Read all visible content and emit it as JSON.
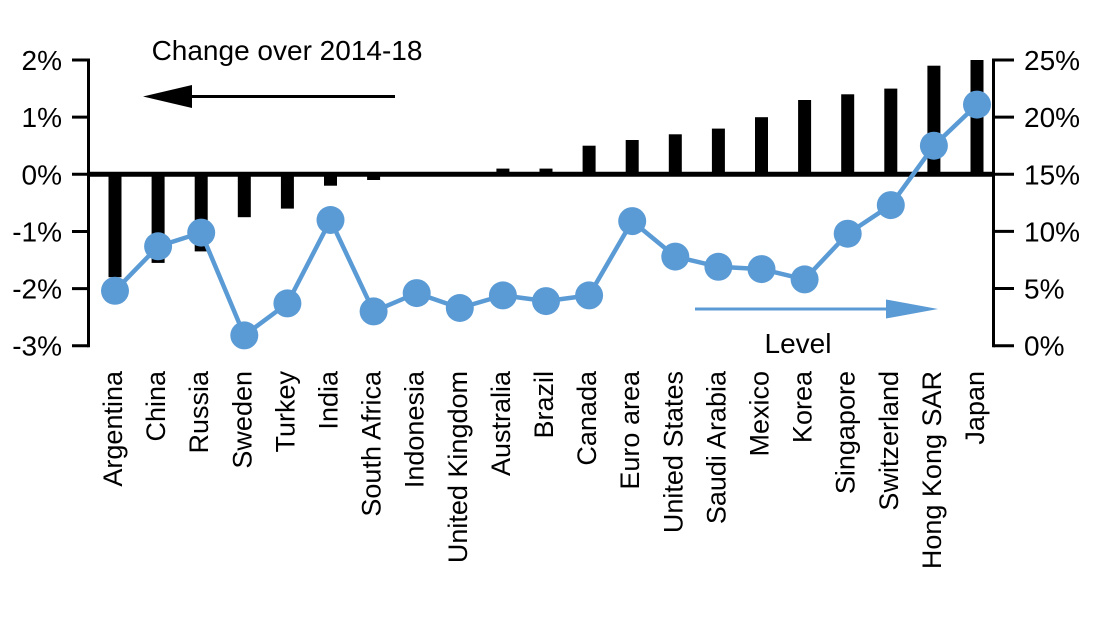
{
  "chart_data": {
    "type": "bar",
    "subtype": "dual-axis bar+line",
    "title": "",
    "categories": [
      "Argentina",
      "China",
      "Russia",
      "Sweden",
      "Turkey",
      "India",
      "South Africa",
      "Indonesia",
      "United Kingdom",
      "Australia",
      "Brazil",
      "Canada",
      "Euro area",
      "United States",
      "Saudi Arabia",
      "Mexico",
      "Korea",
      "Singapore",
      "Switzerland",
      "Hong Kong SAR",
      "Japan"
    ],
    "series": [
      {
        "name": "Change over 2014-18",
        "type": "bar",
        "axis": "left",
        "color": "#000000",
        "unit": "%",
        "values": [
          -1.8,
          -1.55,
          -1.35,
          -0.75,
          -0.6,
          -0.2,
          -0.1,
          0,
          0,
          0.1,
          0.1,
          0.5,
          0.6,
          0.7,
          0.8,
          1.0,
          1.3,
          1.4,
          1.5,
          1.9,
          2.0
        ]
      },
      {
        "name": "Level",
        "type": "line",
        "axis": "right",
        "color": "#5B9BD5",
        "unit": "%",
        "values": [
          4.8,
          8.7,
          9.9,
          0.9,
          3.7,
          11.0,
          3.0,
          4.6,
          3.3,
          4.4,
          3.9,
          4.4,
          10.9,
          7.8,
          6.9,
          6.7,
          5.8,
          9.8,
          12.3,
          17.5,
          21.1
        ]
      }
    ],
    "left_axis": {
      "tick_labels": [
        "2%",
        "1%",
        "0%",
        "-1%",
        "-2%",
        "-3%"
      ],
      "tick_values": [
        2,
        1,
        0,
        -1,
        -2,
        -3
      ],
      "range": [
        -3,
        2
      ]
    },
    "right_axis": {
      "tick_labels": [
        "25%",
        "20%",
        "15%",
        "10%",
        "5%",
        "0%"
      ],
      "tick_values": [
        25,
        20,
        15,
        10,
        5,
        0
      ],
      "range": [
        0,
        25
      ]
    },
    "annotations": {
      "change_label": "Change over 2014-18",
      "change_arrow_direction": "left",
      "level_label": "Level",
      "level_arrow_direction": "right"
    },
    "grid": false,
    "legend_position": "none"
  },
  "colors": {
    "bar": "#000000",
    "line": "#5B9BD5",
    "text": "#000000",
    "background": "#FFFFFF"
  }
}
